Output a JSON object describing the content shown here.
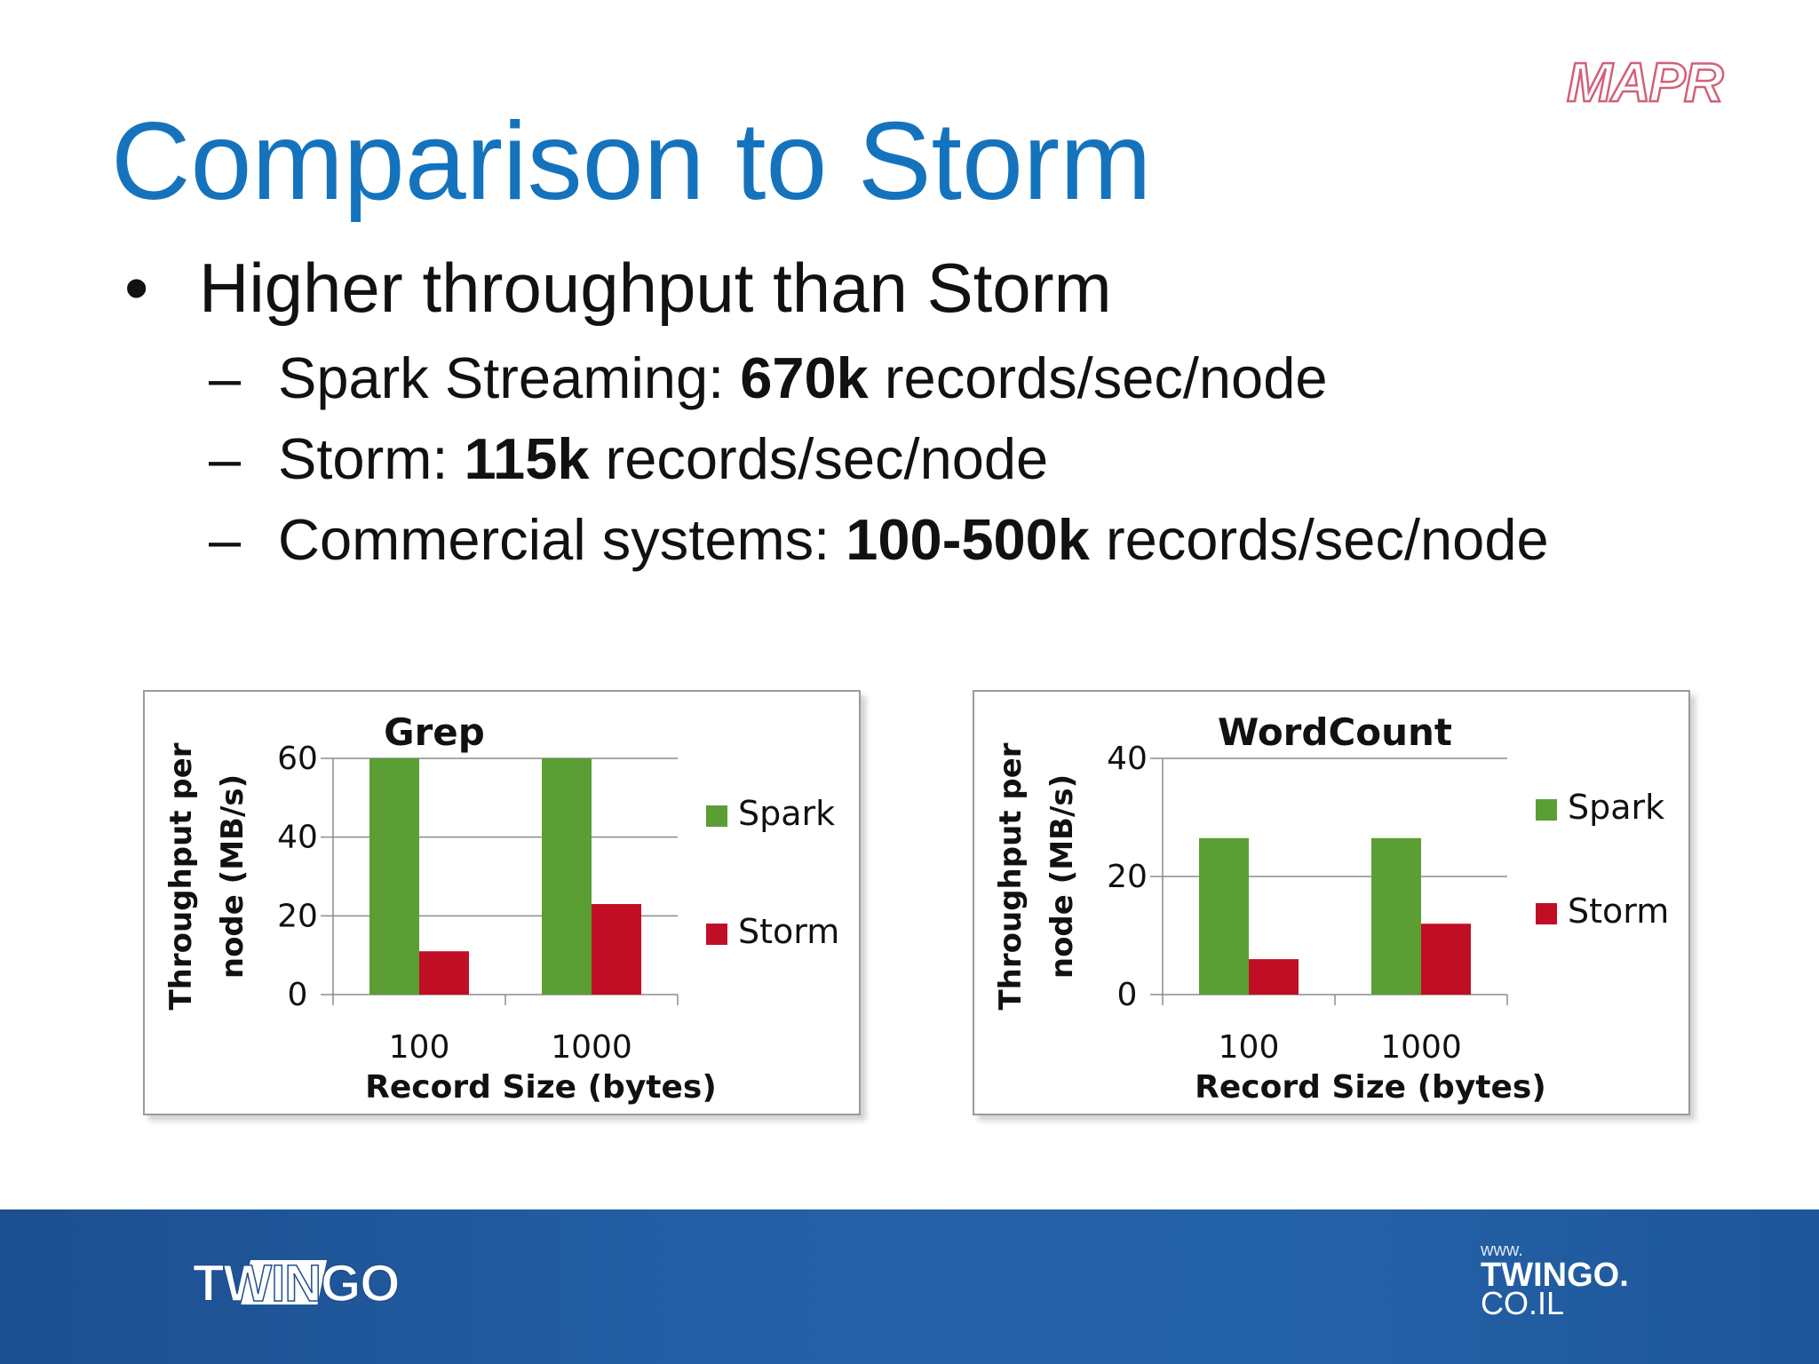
{
  "slide": {
    "title": "Comparison to Storm",
    "bullet": {
      "marker": "•",
      "text": "Higher throughput than Storm"
    },
    "sub_bullets": [
      {
        "dash": "–",
        "pre": "Spark Streaming: ",
        "bold": "670k",
        "post": " records/sec/node"
      },
      {
        "dash": "–",
        "pre": "Storm: ",
        "bold": "115k",
        "post": " records/sec/node"
      },
      {
        "dash": "–",
        "pre": "Commercial systems: ",
        "bold": "100-500k",
        "post": " records/sec/node"
      }
    ]
  },
  "logos": {
    "mapr": "MAPR",
    "twingo": "TWINGO",
    "twingo_url": {
      "line1": "www.",
      "line2": "TWINGO.",
      "line3": "CO.IL"
    }
  },
  "colors": {
    "title": "#1573bd",
    "spark": "#5a9e34",
    "storm": "#c00f25",
    "footer": "#2462a8"
  },
  "chart_data": [
    {
      "type": "bar",
      "title": "Grep",
      "xlabel": "Record Size (bytes)",
      "ylabel": "Throughput per node (MB/s)",
      "ylabel_lines": [
        "Throughput per",
        "node (MB/s)"
      ],
      "categories": [
        "100",
        "1000"
      ],
      "series": [
        {
          "name": "Spark",
          "color": "#5a9e34",
          "values": [
            60,
            60
          ]
        },
        {
          "name": "Storm",
          "color": "#c00f25",
          "values": [
            11,
            23
          ]
        }
      ],
      "ylim": [
        0,
        60
      ],
      "yticks": [
        0,
        20,
        40,
        60
      ],
      "grid": true,
      "legend": "right"
    },
    {
      "type": "bar",
      "title": "WordCount",
      "xlabel": "Record Size (bytes)",
      "ylabel": "Throughput per node (MB/s)",
      "ylabel_lines": [
        "Throughput per",
        "node (MB/s)"
      ],
      "categories": [
        "100",
        "1000"
      ],
      "series": [
        {
          "name": "Spark",
          "color": "#5a9e34",
          "values": [
            26.5,
            26.5
          ]
        },
        {
          "name": "Storm",
          "color": "#c00f25",
          "values": [
            6,
            12
          ]
        }
      ],
      "ylim": [
        0,
        40
      ],
      "yticks": [
        0,
        20,
        40
      ],
      "grid": true,
      "legend": "right"
    }
  ]
}
